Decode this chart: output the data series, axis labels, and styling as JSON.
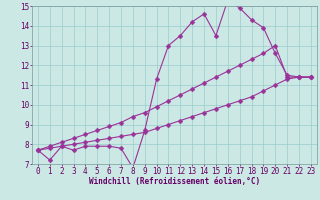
{
  "xlabel": "Windchill (Refroidissement éolien,°C)",
  "bg_color": "#cce8e4",
  "line_color": "#993399",
  "grid_color": "#99cccc",
  "xlim": [
    -0.5,
    23.5
  ],
  "ylim": [
    7,
    15
  ],
  "xticks": [
    0,
    1,
    2,
    3,
    4,
    5,
    6,
    7,
    8,
    9,
    10,
    11,
    12,
    13,
    14,
    15,
    16,
    17,
    18,
    19,
    20,
    21,
    22,
    23
  ],
  "yticks": [
    7,
    8,
    9,
    10,
    11,
    12,
    13,
    14,
    15
  ],
  "line1_x": [
    0,
    1,
    2,
    3,
    4,
    5,
    6,
    7,
    8,
    9,
    10,
    11,
    12,
    13,
    14,
    15,
    16,
    17,
    18,
    19,
    20,
    21,
    22,
    23
  ],
  "line1_y": [
    7.7,
    7.2,
    7.9,
    7.7,
    7.9,
    7.9,
    7.9,
    7.8,
    6.8,
    8.7,
    11.3,
    13.0,
    13.5,
    14.2,
    14.6,
    13.5,
    15.3,
    14.9,
    14.3,
    13.9,
    12.6,
    11.5,
    11.4,
    11.4
  ],
  "line2_x": [
    0,
    1,
    2,
    3,
    4,
    5,
    6,
    7,
    8,
    9,
    10,
    11,
    12,
    13,
    14,
    15,
    16,
    17,
    18,
    19,
    20,
    21,
    22,
    23
  ],
  "line2_y": [
    7.7,
    7.9,
    8.1,
    8.3,
    8.5,
    8.7,
    8.9,
    9.1,
    9.4,
    9.6,
    9.9,
    10.2,
    10.5,
    10.8,
    11.1,
    11.4,
    11.7,
    12.0,
    12.3,
    12.6,
    13.0,
    11.4,
    11.4,
    11.4
  ],
  "line3_x": [
    0,
    1,
    2,
    3,
    4,
    5,
    6,
    7,
    8,
    9,
    10,
    11,
    12,
    13,
    14,
    15,
    16,
    17,
    18,
    19,
    20,
    21,
    22,
    23
  ],
  "line3_y": [
    7.7,
    7.8,
    7.9,
    8.0,
    8.1,
    8.2,
    8.3,
    8.4,
    8.5,
    8.6,
    8.8,
    9.0,
    9.2,
    9.4,
    9.6,
    9.8,
    10.0,
    10.2,
    10.4,
    10.7,
    11.0,
    11.3,
    11.4,
    11.4
  ],
  "markersize": 2.5,
  "linewidth": 0.8,
  "tick_fontsize": 5.5,
  "label_fontsize": 5.5
}
